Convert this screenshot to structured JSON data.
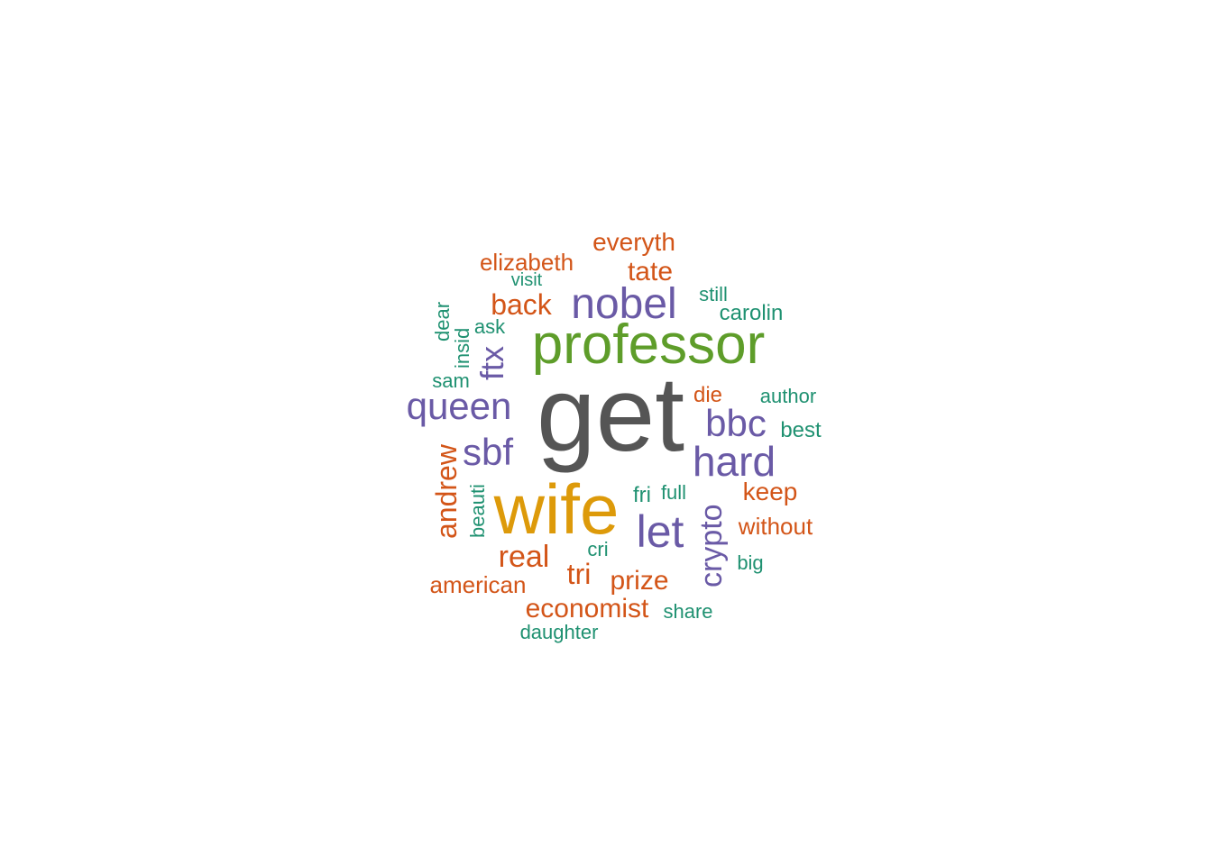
{
  "palette": {
    "gray": "#555555",
    "gold": "#dd9a0a",
    "green": "#5e9d2a",
    "purple": "#6a5aa6",
    "orange": "#d35518",
    "teal": "#1f9171"
  },
  "words": [
    {
      "text": "get",
      "color": "gray",
      "rank": 1,
      "orientation": "horizontal"
    },
    {
      "text": "wife",
      "color": "gold",
      "rank": 2,
      "orientation": "horizontal"
    },
    {
      "text": "professor",
      "color": "green",
      "rank": 3,
      "orientation": "horizontal"
    },
    {
      "text": "nobel",
      "color": "purple",
      "rank": 4,
      "orientation": "horizontal"
    },
    {
      "text": "let",
      "color": "purple",
      "rank": 4,
      "orientation": "horizontal"
    },
    {
      "text": "queen",
      "color": "purple",
      "rank": 4,
      "orientation": "horizontal"
    },
    {
      "text": "hard",
      "color": "purple",
      "rank": 4,
      "orientation": "horizontal"
    },
    {
      "text": "bbc",
      "color": "purple",
      "rank": 4,
      "orientation": "horizontal"
    },
    {
      "text": "sbf",
      "color": "purple",
      "rank": 4,
      "orientation": "horizontal"
    },
    {
      "text": "ftx",
      "color": "purple",
      "rank": 4,
      "orientation": "vertical"
    },
    {
      "text": "crypto",
      "color": "purple",
      "rank": 4,
      "orientation": "vertical"
    },
    {
      "text": "andrew",
      "color": "orange",
      "rank": 5,
      "orientation": "vertical"
    },
    {
      "text": "back",
      "color": "orange",
      "rank": 5,
      "orientation": "horizontal"
    },
    {
      "text": "real",
      "color": "orange",
      "rank": 5,
      "orientation": "horizontal"
    },
    {
      "text": "tri",
      "color": "orange",
      "rank": 5,
      "orientation": "horizontal"
    },
    {
      "text": "tate",
      "color": "orange",
      "rank": 5,
      "orientation": "horizontal"
    },
    {
      "text": "everyth",
      "color": "orange",
      "rank": 5,
      "orientation": "horizontal"
    },
    {
      "text": "elizabeth",
      "color": "orange",
      "rank": 5,
      "orientation": "horizontal"
    },
    {
      "text": "keep",
      "color": "orange",
      "rank": 5,
      "orientation": "horizontal"
    },
    {
      "text": "prize",
      "color": "orange",
      "rank": 5,
      "orientation": "horizontal"
    },
    {
      "text": "economist",
      "color": "orange",
      "rank": 5,
      "orientation": "horizontal"
    },
    {
      "text": "without",
      "color": "orange",
      "rank": 5,
      "orientation": "horizontal"
    },
    {
      "text": "american",
      "color": "orange",
      "rank": 5,
      "orientation": "horizontal"
    },
    {
      "text": "die",
      "color": "orange",
      "rank": 5,
      "orientation": "horizontal"
    },
    {
      "text": "carolin",
      "color": "teal",
      "rank": 6,
      "orientation": "horizontal"
    },
    {
      "text": "author",
      "color": "teal",
      "rank": 6,
      "orientation": "horizontal"
    },
    {
      "text": "best",
      "color": "teal",
      "rank": 6,
      "orientation": "horizontal"
    },
    {
      "text": "sam",
      "color": "teal",
      "rank": 6,
      "orientation": "horizontal"
    },
    {
      "text": "insid",
      "color": "teal",
      "rank": 6,
      "orientation": "vertical"
    },
    {
      "text": "beauti",
      "color": "teal",
      "rank": 6,
      "orientation": "vertical"
    },
    {
      "text": "dear",
      "color": "teal",
      "rank": 6,
      "orientation": "vertical"
    },
    {
      "text": "ask",
      "color": "teal",
      "rank": 6,
      "orientation": "horizontal"
    },
    {
      "text": "visit",
      "color": "teal",
      "rank": 6,
      "orientation": "horizontal"
    },
    {
      "text": "still",
      "color": "teal",
      "rank": 6,
      "orientation": "horizontal"
    },
    {
      "text": "fri",
      "color": "teal",
      "rank": 6,
      "orientation": "horizontal"
    },
    {
      "text": "full",
      "color": "teal",
      "rank": 6,
      "orientation": "horizontal"
    },
    {
      "text": "cri",
      "color": "teal",
      "rank": 6,
      "orientation": "horizontal"
    },
    {
      "text": "big",
      "color": "teal",
      "rank": 6,
      "orientation": "horizontal"
    },
    {
      "text": "share",
      "color": "teal",
      "rank": 6,
      "orientation": "horizontal"
    },
    {
      "text": "daughter",
      "color": "teal",
      "rank": 6,
      "orientation": "horizontal"
    }
  ]
}
